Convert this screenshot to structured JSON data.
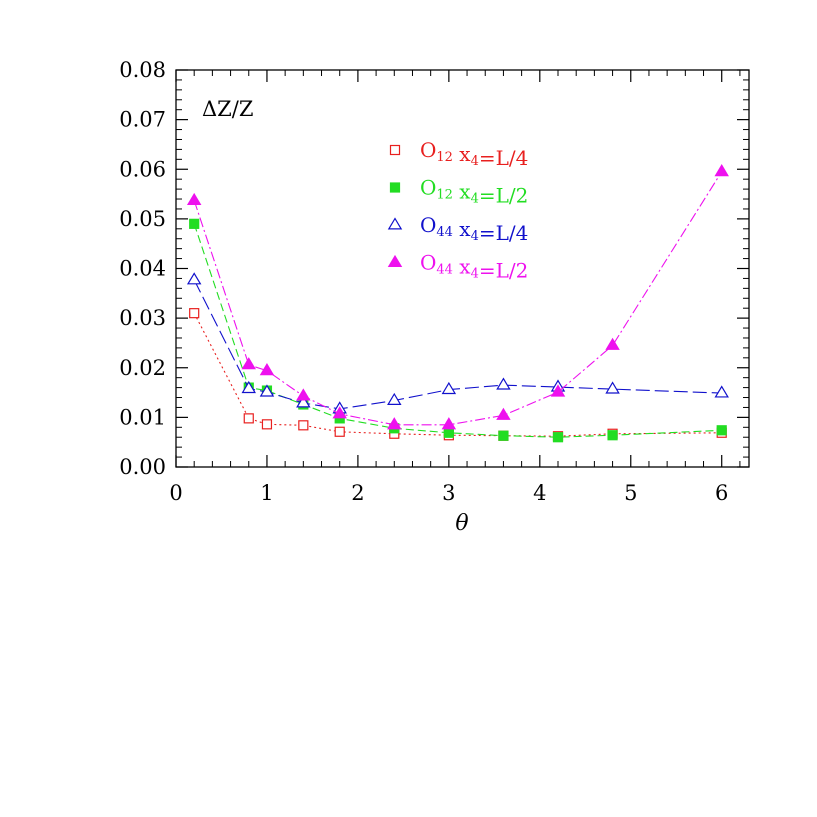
{
  "chart_data": {
    "type": "line",
    "annotation": "ΔZ/Z",
    "xlabel": "θ",
    "xlim": [
      0,
      6.3
    ],
    "ylim": [
      0,
      0.08
    ],
    "xticks": [
      0,
      1,
      2,
      3,
      4,
      5,
      6
    ],
    "xtick_labels": [
      "0",
      "1",
      "2",
      "3",
      "4",
      "5",
      "6"
    ],
    "yticks": [
      0,
      0.01,
      0.02,
      0.03,
      0.04,
      0.05,
      0.06,
      0.07,
      0.08
    ],
    "ytick_labels": [
      "0.00",
      "0.01",
      "0.02",
      "0.03",
      "0.04",
      "0.05",
      "0.06",
      "0.07",
      "0.08"
    ],
    "grid": false,
    "legend_position": "top-center",
    "series": [
      {
        "op": "O",
        "op_sub": "12",
        "x4": "x",
        "x4_sub": "4",
        "eq": "=L/4",
        "color": "#e8201f",
        "marker": "square-open",
        "dash": "2,3",
        "x": [
          0.2,
          0.8,
          1.0,
          1.4,
          1.8,
          2.4,
          3.0,
          3.6,
          4.2,
          4.8,
          6.0
        ],
        "values": [
          0.031,
          0.0098,
          0.0086,
          0.0084,
          0.0071,
          0.0067,
          0.0064,
          0.0063,
          0.0062,
          0.0067,
          0.0069
        ]
      },
      {
        "op": "O",
        "op_sub": "12",
        "x4": "x",
        "x4_sub": "4",
        "eq": "=L/2",
        "color": "#22dd22",
        "marker": "square-filled",
        "dash": "8,4",
        "x": [
          0.2,
          0.8,
          1.0,
          1.4,
          1.8,
          2.4,
          3.0,
          3.6,
          4.2,
          4.8,
          6.0
        ],
        "values": [
          0.049,
          0.016,
          0.0154,
          0.0126,
          0.0098,
          0.0078,
          0.0069,
          0.0063,
          0.006,
          0.0064,
          0.0074
        ]
      },
      {
        "op": "O",
        "op_sub": "44",
        "x4": "x",
        "x4_sub": "4",
        "eq": "=L/4",
        "color": "#1111cc",
        "marker": "triangle-open",
        "dash": "14,5",
        "x": [
          0.2,
          0.8,
          1.0,
          1.4,
          1.8,
          2.4,
          3.0,
          3.6,
          4.2,
          4.8,
          6.0
        ],
        "values": [
          0.0377,
          0.0158,
          0.0151,
          0.0129,
          0.0117,
          0.0134,
          0.0156,
          0.0165,
          0.0161,
          0.0157,
          0.0149
        ]
      },
      {
        "op": "O",
        "op_sub": "44",
        "x4": "x",
        "x4_sub": "4",
        "eq": "=L/2",
        "color": "#ee11ee",
        "marker": "triangle-filled",
        "dash": "10,3,2,3",
        "x": [
          0.2,
          0.8,
          1.0,
          1.4,
          1.8,
          2.4,
          3.0,
          3.6,
          4.2,
          4.8,
          6.0
        ],
        "values": [
          0.0537,
          0.0206,
          0.0194,
          0.0143,
          0.0107,
          0.0085,
          0.0085,
          0.0104,
          0.0151,
          0.0245,
          0.0595
        ]
      }
    ]
  }
}
